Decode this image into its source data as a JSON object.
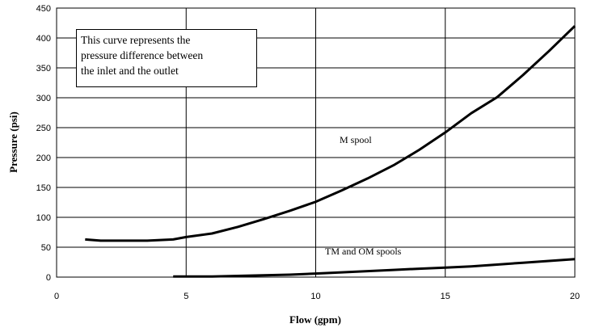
{
  "chart_data": {
    "type": "line",
    "title": "",
    "xlabel": "Flow (gpm)",
    "ylabel": "Pressure (psi)",
    "xlim": [
      0,
      20
    ],
    "ylim": [
      0,
      450
    ],
    "x_ticks": [
      "0",
      "5",
      "10",
      "15",
      "20"
    ],
    "y_ticks": [
      "0",
      "50",
      "100",
      "150",
      "200",
      "250",
      "300",
      "350",
      "400",
      "450"
    ],
    "grid": true,
    "annotation_lines": [
      "This curve represents the",
      "pressure difference between",
      "the inlet and the outlet"
    ],
    "series": [
      {
        "name": "M spool",
        "x": [
          1.1,
          1.7,
          2.5,
          3.5,
          4.5,
          5.0,
          6.0,
          7.0,
          8.0,
          9.0,
          10.0,
          11.0,
          12.0,
          13.0,
          14.0,
          15.0,
          16.0,
          17.0,
          18.0,
          19.0,
          20.0
        ],
        "y": [
          63,
          61,
          61,
          61,
          63,
          67,
          73,
          84,
          97,
          111,
          126,
          145,
          165,
          187,
          213,
          242,
          274,
          301,
          338,
          378,
          420
        ]
      },
      {
        "name": "TM and OM spools",
        "x": [
          4.5,
          5.0,
          6.0,
          7.0,
          8.0,
          9.0,
          10.0,
          11.0,
          12.0,
          13.0,
          14.0,
          15.0,
          16.0,
          17.0,
          18.0,
          19.0,
          20.0
        ],
        "y": [
          1,
          1,
          1,
          2,
          3,
          4,
          6,
          8,
          10,
          12,
          14,
          16,
          18,
          21,
          24,
          27,
          30
        ]
      }
    ],
    "series_labels": [
      "M spool",
      "TM and OM spools"
    ]
  }
}
